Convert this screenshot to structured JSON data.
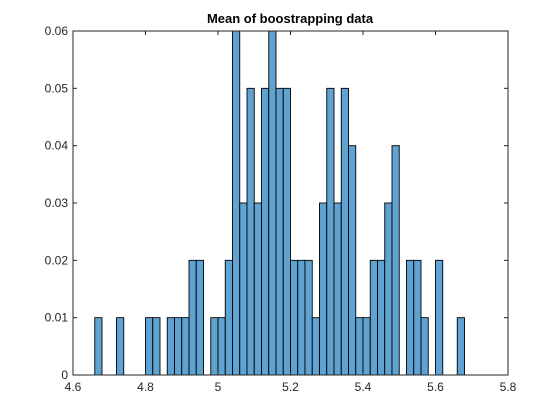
{
  "chart_data": {
    "type": "bar",
    "title": "Mean of boostrapping data",
    "xlabel": "",
    "ylabel": "",
    "xlim": [
      4.6,
      5.8
    ],
    "ylim": [
      0,
      0.06
    ],
    "xticks": [
      "4.6",
      "4.8",
      "5",
      "5.2",
      "5.4",
      "5.6",
      "5.8"
    ],
    "yticks": [
      "0",
      "0.01",
      "0.02",
      "0.03",
      "0.04",
      "0.05",
      "0.06"
    ],
    "bin_width": 0.02,
    "bar_color": "#5fa3d3",
    "edge_color": "#000000",
    "grid": false,
    "bins": [
      {
        "x": 4.67,
        "y": 0.01
      },
      {
        "x": 4.73,
        "y": 0.01
      },
      {
        "x": 4.81,
        "y": 0.01
      },
      {
        "x": 4.83,
        "y": 0.01
      },
      {
        "x": 4.87,
        "y": 0.01
      },
      {
        "x": 4.89,
        "y": 0.01
      },
      {
        "x": 4.91,
        "y": 0.01
      },
      {
        "x": 4.93,
        "y": 0.02
      },
      {
        "x": 4.95,
        "y": 0.02
      },
      {
        "x": 4.99,
        "y": 0.01
      },
      {
        "x": 5.01,
        "y": 0.01
      },
      {
        "x": 5.03,
        "y": 0.02
      },
      {
        "x": 5.05,
        "y": 0.06
      },
      {
        "x": 5.07,
        "y": 0.03
      },
      {
        "x": 5.09,
        "y": 0.05
      },
      {
        "x": 5.11,
        "y": 0.03
      },
      {
        "x": 5.13,
        "y": 0.05
      },
      {
        "x": 5.15,
        "y": 0.06
      },
      {
        "x": 5.17,
        "y": 0.05
      },
      {
        "x": 5.19,
        "y": 0.05
      },
      {
        "x": 5.21,
        "y": 0.02
      },
      {
        "x": 5.23,
        "y": 0.02
      },
      {
        "x": 5.25,
        "y": 0.02
      },
      {
        "x": 5.27,
        "y": 0.01
      },
      {
        "x": 5.29,
        "y": 0.03
      },
      {
        "x": 5.31,
        "y": 0.05
      },
      {
        "x": 5.33,
        "y": 0.03
      },
      {
        "x": 5.35,
        "y": 0.05
      },
      {
        "x": 5.37,
        "y": 0.04
      },
      {
        "x": 5.39,
        "y": 0.01
      },
      {
        "x": 5.41,
        "y": 0.01
      },
      {
        "x": 5.43,
        "y": 0.02
      },
      {
        "x": 5.45,
        "y": 0.02
      },
      {
        "x": 5.47,
        "y": 0.03
      },
      {
        "x": 5.49,
        "y": 0.04
      },
      {
        "x": 5.53,
        "y": 0.02
      },
      {
        "x": 5.55,
        "y": 0.02
      },
      {
        "x": 5.57,
        "y": 0.01
      },
      {
        "x": 5.61,
        "y": 0.02
      },
      {
        "x": 5.67,
        "y": 0.01
      }
    ]
  }
}
